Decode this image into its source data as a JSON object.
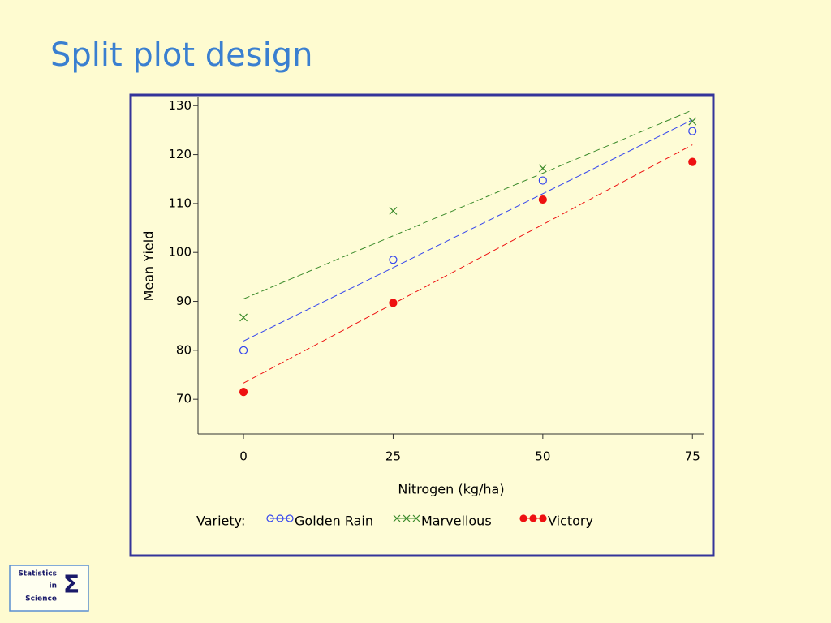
{
  "chart_data": {
    "type": "scatter",
    "title": "Split plot design",
    "x_label": "Nitrogen (kg/ha)",
    "y_label": "Mean Yield",
    "legend_title": "Variety:",
    "x": [
      0,
      25,
      50,
      75
    ],
    "series": [
      {
        "name": "Golden Rain",
        "color": "#3344ee",
        "marker": "circle",
        "values": [
          80,
          98.5,
          114.7,
          124.8
        ],
        "fit": [
          81.9,
          96.9,
          112.0,
          127.1
        ]
      },
      {
        "name": "Marvellous",
        "color": "#3a8a2a",
        "marker": "cross",
        "values": [
          86.7,
          108.5,
          117.2,
          126.8
        ],
        "fit": [
          90.5,
          103.4,
          116.2,
          129.1
        ]
      },
      {
        "name": "Victory",
        "color": "#ee1111",
        "marker": "dot",
        "values": [
          71.5,
          89.7,
          110.8,
          118.5
        ],
        "fit": [
          73.3,
          89.5,
          105.7,
          122.0
        ]
      }
    ],
    "xlim": [
      -7.6,
      77.0
    ],
    "ylim": [
      62.9,
      131.7
    ],
    "xticks": [
      0,
      25,
      50,
      75
    ],
    "yticks": [
      70,
      80,
      90,
      100,
      110,
      120,
      130
    ]
  },
  "logo": {
    "lines": [
      "Statistics",
      "in",
      "Science"
    ],
    "symbol": "Σ"
  }
}
